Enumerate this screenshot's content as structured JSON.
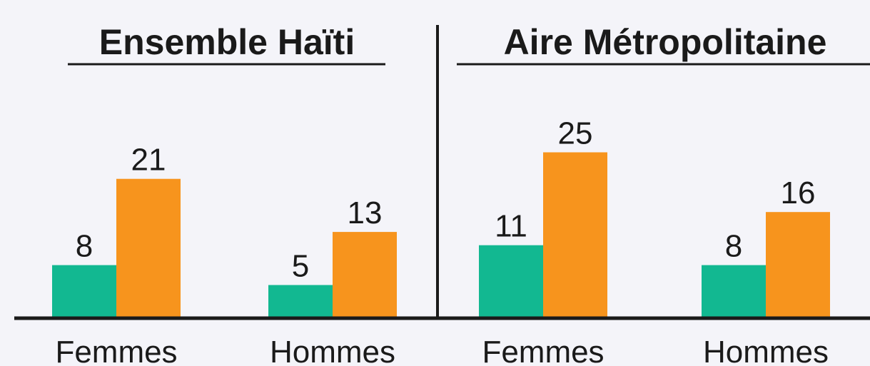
{
  "chart_data": [
    {
      "type": "bar",
      "title": "Ensemble Haïti",
      "categories": [
        "Femmes",
        "Hommes"
      ],
      "series": [
        {
          "color": "#12b891",
          "values": [
            8,
            5
          ]
        },
        {
          "color": "#f7941d",
          "values": [
            21,
            13
          ]
        }
      ]
    },
    {
      "type": "bar",
      "title": "Aire Métropolitaine",
      "categories": [
        "Femmes",
        "Hommes"
      ],
      "series": [
        {
          "color": "#12b891",
          "values": [
            11,
            8
          ]
        },
        {
          "color": "#f7941d",
          "values": [
            25,
            16
          ]
        }
      ]
    }
  ]
}
